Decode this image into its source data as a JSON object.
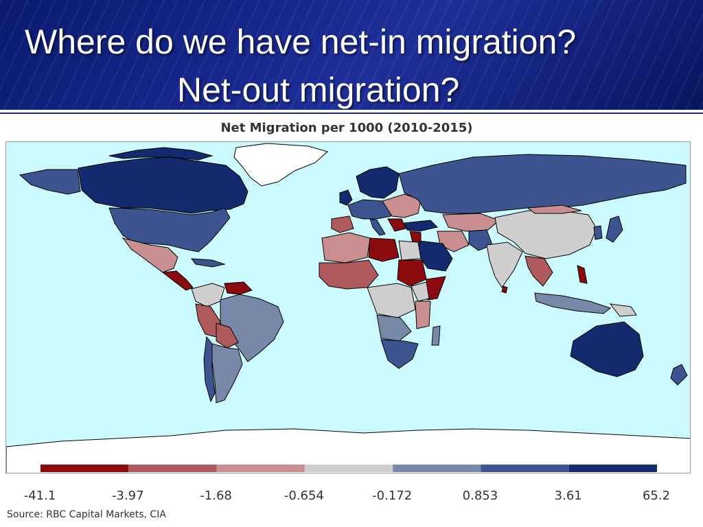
{
  "slide": {
    "title_line1": "Where do we have net-in migration?",
    "title_line2": "Net-out migration?"
  },
  "map": {
    "title": "Net Migration per 1000 (2010-2015)",
    "ocean_color": "#ccfbff",
    "no_data_color": "#ffffff",
    "legend": {
      "breaks": [
        "-41.1",
        "-3.97",
        "-1.68",
        "-0.654",
        "-0.172",
        "0.853",
        "3.61",
        "65.2"
      ],
      "colors": [
        "#8b0a0e",
        "#b05a5e",
        "#c98e90",
        "#cfcfcf",
        "#7888a8",
        "#3e5490",
        "#142a6e"
      ]
    }
  },
  "source_text": "Source: RBC Capital Markets, CIA"
}
